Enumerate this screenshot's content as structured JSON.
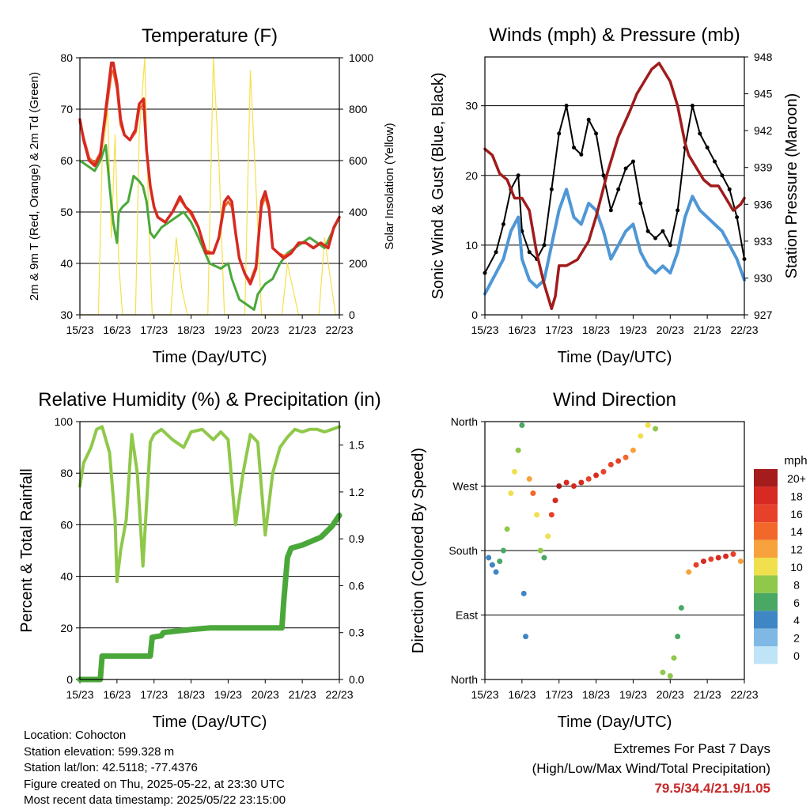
{
  "panels": {
    "temperature": {
      "title": "Temperature (F)",
      "xlabel": "Time (Day/UTC)",
      "ylabel_left": "2m & 9m T (Red, Orange) & 2m Td (Green)",
      "ylabel_right": "Solar Insolation (Yellow)"
    },
    "winds": {
      "title": "Winds (mph) & Pressure (mb)",
      "xlabel": "Time (Day/UTC)",
      "ylabel_left": "Sonic Wind & Gust (Blue, Black)",
      "ylabel_right": "Station Pressure (Maroon)"
    },
    "humidity": {
      "title": "Relative Humidity (%) & Precipitation (in)",
      "xlabel": "Time (Day/UTC)",
      "ylabel_left": "Percent & Total Rainfall"
    },
    "direction": {
      "title": "Wind Direction",
      "xlabel": "Time (Day/UTC)",
      "ylabel_left": "Direction (Colored By Speed)"
    }
  },
  "legend": {
    "unit": "mph",
    "labels": [
      "20+",
      "18",
      "16",
      "14",
      "12",
      "10",
      "8",
      "6",
      "4",
      "2",
      "0"
    ],
    "colors": [
      "#a51c1c",
      "#d62a22",
      "#e8412b",
      "#f2682b",
      "#f7a23c",
      "#f0e04e",
      "#8fc84a",
      "#4aa865",
      "#3f86c4",
      "#7fb8e4",
      "#bfe3f7"
    ]
  },
  "footer": {
    "location": "Location: Cohocton",
    "elevation": "Station elevation: 599.328 m",
    "latlon": "Station lat/lon: 42.5118; -77.4376",
    "created": "Figure created on Thu, 2025-05-22, at 23:30 UTC",
    "timestamp": "Most recent data timestamp: 2025/05/22 23:15:00",
    "extremes_title": "Extremes For Past 7 Days",
    "extremes_subtitle": "(High/Low/Max Wind/Total Precipitation)",
    "extremes_values": "79.5/34.4/21.9/1.05"
  },
  "colors": {
    "temp_2m": "#d62a22",
    "temp_9m": "#f2682b",
    "dewpoint": "#4aa83a",
    "solar": "#f5e04a",
    "wind": "#4f97d6",
    "gust": "#000000",
    "pressure": "#a01c1c",
    "rh": "#8fc84a",
    "precip": "#4aa83a"
  },
  "chart_data": [
    {
      "type": "line",
      "title": "Temperature (F)",
      "xlabel": "Time (Day/UTC)",
      "ylabel": "2m & 9m T (Red, Orange) & 2m Td (Green)",
      "y2label": "Solar Insolation (Yellow)",
      "x_ticks": [
        "15/23",
        "16/23",
        "17/23",
        "18/23",
        "19/23",
        "20/23",
        "21/23",
        "22/23"
      ],
      "xlim": [
        0,
        7
      ],
      "ylim": [
        30,
        80
      ],
      "y_ticks": [
        30,
        40,
        50,
        60,
        70,
        80
      ],
      "y2lim": [
        0,
        1000
      ],
      "y2_ticks": [
        0,
        200,
        400,
        600,
        800,
        1000
      ],
      "grid": "horizontal",
      "series": [
        {
          "axis": "left",
          "color_key": "temp_2m",
          "x": [
            0,
            0.1,
            0.25,
            0.4,
            0.55,
            0.7,
            0.85,
            0.9,
            1.0,
            1.1,
            1.2,
            1.35,
            1.5,
            1.6,
            1.72,
            1.8,
            1.9,
            2.0,
            2.1,
            2.3,
            2.5,
            2.7,
            2.85,
            3.0,
            3.2,
            3.4,
            3.6,
            3.75,
            3.9,
            4.0,
            4.1,
            4.2,
            4.3,
            4.45,
            4.6,
            4.75,
            4.9,
            5.0,
            5.1,
            5.2,
            5.35,
            5.5,
            5.7,
            5.9,
            6.1,
            6.3,
            6.5,
            6.7,
            6.85,
            7.0
          ],
          "y": [
            68,
            64,
            60,
            59,
            61,
            70,
            79,
            79,
            75,
            68,
            65,
            64,
            66,
            71,
            72,
            62,
            55,
            51,
            49,
            48,
            50,
            53,
            51,
            50,
            47,
            42,
            42,
            45,
            52,
            53,
            52,
            46,
            41,
            38,
            36,
            39,
            52,
            54,
            51,
            43,
            42,
            41,
            42,
            44,
            44,
            43,
            44,
            43,
            47,
            49
          ]
        },
        {
          "axis": "left",
          "color_key": "temp_9m",
          "x": [
            0,
            0.1,
            0.25,
            0.4,
            0.55,
            0.7,
            0.85,
            0.9,
            1.0,
            1.1,
            1.2,
            1.35,
            1.5,
            1.6,
            1.72,
            1.8,
            1.9,
            2.0,
            2.1,
            2.3,
            2.5,
            2.7,
            2.85,
            3.0,
            3.2,
            3.4,
            3.6,
            3.75,
            3.9,
            4.0,
            4.1,
            4.2,
            4.3,
            4.45,
            4.6,
            4.75,
            4.9,
            5.0,
            5.1,
            5.2,
            5.35,
            5.5,
            5.7,
            5.9,
            6.1,
            6.3,
            6.5,
            6.7,
            6.85,
            7.0
          ],
          "y": [
            67.5,
            64.5,
            60.5,
            59.5,
            61.5,
            69,
            77,
            77.5,
            74,
            67,
            65,
            64,
            65.5,
            70,
            71,
            62,
            55,
            51,
            49,
            48,
            50,
            52.5,
            51,
            49.5,
            47,
            42.5,
            42,
            45,
            51,
            52,
            51,
            46,
            41,
            38,
            36.5,
            39.5,
            51,
            53,
            50.5,
            43,
            42,
            41.5,
            42,
            44,
            44,
            43,
            44,
            43,
            47,
            49
          ]
        },
        {
          "axis": "left",
          "color_key": "dewpoint",
          "x": [
            0,
            0.2,
            0.4,
            0.55,
            0.7,
            0.8,
            0.9,
            1.0,
            1.05,
            1.15,
            1.3,
            1.45,
            1.6,
            1.7,
            1.8,
            1.9,
            2.0,
            2.2,
            2.4,
            2.6,
            2.8,
            3.0,
            3.2,
            3.5,
            3.8,
            4.0,
            4.1,
            4.3,
            4.5,
            4.7,
            4.8,
            5.0,
            5.2,
            5.4,
            5.6,
            5.8,
            6.0,
            6.2,
            6.4,
            6.6,
            6.8,
            7.0
          ],
          "y": [
            60,
            59,
            58,
            60,
            63,
            55,
            48,
            44,
            50,
            51,
            52,
            57,
            56,
            55,
            52,
            46,
            45,
            47,
            48,
            49,
            50,
            48,
            45,
            40,
            39,
            40,
            37,
            33,
            32,
            31,
            34,
            36,
            37,
            40,
            42,
            43,
            44,
            45,
            44,
            43,
            46,
            49
          ]
        },
        {
          "axis": "right",
          "color_key": "solar",
          "x": [
            0,
            0.5,
            0.6,
            0.75,
            0.85,
            0.95,
            1.05,
            1.15,
            1.3,
            1.5,
            1.6,
            1.75,
            1.85,
            1.95,
            2.1,
            2.45,
            2.6,
            2.75,
            2.9,
            3.45,
            3.6,
            3.75,
            3.9,
            4.45,
            4.6,
            4.75,
            4.9,
            5.45,
            5.6,
            5.75,
            5.9,
            6.45,
            6.6,
            6.75,
            6.9,
            7.0
          ],
          "y": [
            0,
            0,
            600,
            800,
            300,
            700,
            200,
            0,
            0,
            0,
            700,
            1000,
            400,
            0,
            0,
            0,
            300,
            100,
            0,
            0,
            1000,
            600,
            0,
            0,
            950,
            500,
            0,
            0,
            200,
            100,
            0,
            0,
            300,
            150,
            0,
            0
          ]
        }
      ]
    },
    {
      "type": "line",
      "title": "Winds (mph) & Pressure (mb)",
      "xlabel": "Time (Day/UTC)",
      "ylabel": "Sonic Wind & Gust (Blue, Black)",
      "y2label": "Station Pressure (Maroon)",
      "x_ticks": [
        "15/23",
        "16/23",
        "17/23",
        "18/23",
        "19/23",
        "20/23",
        "21/23",
        "22/23"
      ],
      "xlim": [
        0,
        7
      ],
      "ylim": [
        0,
        37
      ],
      "y_ticks": [
        0,
        10,
        20,
        30
      ],
      "y2lim": [
        927,
        948
      ],
      "y2_ticks": [
        927,
        930,
        933,
        936,
        939,
        942,
        945,
        948
      ],
      "grid": "horizontal",
      "series": [
        {
          "axis": "right",
          "color_key": "pressure",
          "x": [
            0,
            0.2,
            0.4,
            0.6,
            0.8,
            1.0,
            1.2,
            1.4,
            1.6,
            1.8,
            1.9,
            2.0,
            2.2,
            2.5,
            2.8,
            3.0,
            3.3,
            3.6,
            3.9,
            4.1,
            4.3,
            4.5,
            4.7,
            4.8,
            4.9,
            5.0,
            5.2,
            5.4,
            5.5,
            5.7,
            5.9,
            6.1,
            6.3,
            6.5,
            6.7,
            6.9,
            7.0
          ],
          "y": [
            940.5,
            940,
            938.5,
            938,
            936.5,
            936.5,
            935.5,
            932,
            929.5,
            927.5,
            928.5,
            931,
            931,
            931.5,
            933,
            935,
            938.5,
            941.5,
            943.5,
            945,
            946,
            947,
            947.5,
            947,
            946.5,
            946,
            944,
            941,
            940,
            939,
            938,
            937.5,
            937.5,
            936.5,
            935.5,
            936,
            936.5
          ]
        },
        {
          "axis": "left",
          "color_key": "wind",
          "x": [
            0,
            0.3,
            0.5,
            0.7,
            0.9,
            1.0,
            1.2,
            1.4,
            1.6,
            1.8,
            2.0,
            2.2,
            2.4,
            2.6,
            2.8,
            3.0,
            3.2,
            3.4,
            3.6,
            3.8,
            4.0,
            4.2,
            4.4,
            4.6,
            4.8,
            5.0,
            5.2,
            5.4,
            5.6,
            5.8,
            6.0,
            6.2,
            6.4,
            6.6,
            6.8,
            7.0
          ],
          "y": [
            3,
            6,
            8,
            12,
            14,
            8,
            5,
            4,
            5,
            10,
            15,
            18,
            14,
            13,
            16,
            15,
            12,
            8,
            10,
            12,
            13,
            9,
            7,
            6,
            7,
            6,
            9,
            14,
            17,
            15,
            14,
            13,
            12,
            10,
            8,
            5
          ]
        },
        {
          "axis": "left",
          "color_key": "gust",
          "x": [
            0,
            0.3,
            0.5,
            0.7,
            0.9,
            1.0,
            1.2,
            1.4,
            1.6,
            1.8,
            2.0,
            2.2,
            2.4,
            2.6,
            2.8,
            3.0,
            3.2,
            3.4,
            3.6,
            3.8,
            4.0,
            4.2,
            4.4,
            4.6,
            4.8,
            5.0,
            5.2,
            5.4,
            5.6,
            5.8,
            6.0,
            6.2,
            6.4,
            6.6,
            6.8,
            7.0
          ],
          "y": [
            6,
            9,
            13,
            18,
            20,
            12,
            9,
            8,
            10,
            18,
            26,
            30,
            24,
            23,
            28,
            26,
            20,
            15,
            18,
            21,
            22,
            16,
            12,
            11,
            12,
            10,
            15,
            24,
            30,
            26,
            24,
            22,
            20,
            18,
            14,
            8
          ]
        }
      ]
    },
    {
      "type": "line",
      "title": "Relative Humidity (%) & Precipitation (in)",
      "xlabel": "Time (Day/UTC)",
      "ylabel": "Percent & Total Rainfall",
      "x_ticks": [
        "15/23",
        "16/23",
        "17/23",
        "18/23",
        "19/23",
        "20/23",
        "21/23",
        "22/23"
      ],
      "xlim": [
        0,
        7
      ],
      "ylim": [
        0,
        100
      ],
      "y_ticks": [
        0,
        20,
        40,
        60,
        80,
        100
      ],
      "y2lim": [
        0,
        1.65
      ],
      "y2_ticks": [
        0.0,
        0.3,
        0.6,
        0.9,
        1.2,
        1.5
      ],
      "grid": "horizontal",
      "series": [
        {
          "axis": "left",
          "color_key": "rh",
          "x": [
            0,
            0.1,
            0.3,
            0.45,
            0.6,
            0.8,
            0.95,
            1.0,
            1.1,
            1.25,
            1.4,
            1.55,
            1.7,
            1.8,
            1.9,
            2.0,
            2.2,
            2.5,
            2.8,
            3.0,
            3.3,
            3.6,
            3.8,
            4.0,
            4.2,
            4.4,
            4.6,
            4.8,
            5.0,
            5.2,
            5.4,
            5.6,
            5.8,
            6.0,
            6.2,
            6.4,
            6.6,
            6.8,
            7.0
          ],
          "y": [
            75,
            84,
            90,
            97,
            98,
            88,
            62,
            38,
            50,
            62,
            95,
            80,
            44,
            68,
            92,
            95,
            97,
            93,
            90,
            96,
            97,
            93,
            96,
            93,
            60,
            80,
            95,
            92,
            56,
            80,
            90,
            94,
            97,
            96,
            97,
            97,
            96,
            97,
            98
          ]
        },
        {
          "axis": "right",
          "color_key": "precip",
          "x": [
            0,
            0.55,
            0.6,
            1.9,
            1.95,
            2.2,
            2.25,
            3.0,
            3.5,
            5.45,
            5.5,
            5.6,
            5.7,
            6.0,
            6.5,
            6.8,
            7.0
          ],
          "y": [
            0,
            0,
            0.15,
            0.15,
            0.27,
            0.28,
            0.3,
            0.32,
            0.33,
            0.33,
            0.5,
            0.78,
            0.84,
            0.86,
            0.91,
            0.98,
            1.05
          ]
        }
      ]
    },
    {
      "type": "scatter",
      "title": "Wind Direction",
      "xlabel": "Time (Day/UTC)",
      "ylabel": "Direction (Colored By Speed)",
      "x_ticks": [
        "15/23",
        "16/23",
        "17/23",
        "18/23",
        "19/23",
        "20/23",
        "21/23",
        "22/23"
      ],
      "xlim": [
        0,
        7
      ],
      "ylim": [
        0,
        360
      ],
      "y_ticks": [
        "North",
        "East",
        "South",
        "West",
        "North"
      ],
      "y_tick_values": [
        0,
        90,
        180,
        270,
        360
      ],
      "grid": "horizontal",
      "legend": "right",
      "points": {
        "x": [
          0.1,
          0.2,
          0.3,
          0.4,
          0.5,
          0.6,
          0.7,
          0.8,
          0.9,
          1.0,
          1.05,
          1.1,
          1.2,
          1.3,
          1.4,
          1.5,
          1.6,
          1.7,
          1.8,
          1.9,
          2.0,
          2.2,
          2.4,
          2.6,
          2.8,
          3.0,
          3.2,
          3.4,
          3.6,
          3.8,
          4.0,
          4.2,
          4.4,
          4.6,
          4.8,
          5.0,
          5.1,
          5.2,
          5.3,
          5.5,
          5.7,
          5.9,
          6.1,
          6.3,
          6.5,
          6.7,
          6.9
        ],
        "y": [
          170,
          160,
          150,
          165,
          180,
          210,
          260,
          290,
          320,
          355,
          120,
          60,
          280,
          260,
          230,
          180,
          170,
          200,
          230,
          250,
          270,
          275,
          270,
          275,
          280,
          285,
          290,
          300,
          305,
          310,
          320,
          340,
          355,
          350,
          10,
          5,
          30,
          60,
          100,
          150,
          160,
          165,
          168,
          170,
          172,
          175,
          165
        ],
        "speed": [
          3,
          4,
          3,
          5,
          6,
          8,
          10,
          9,
          7,
          5,
          4,
          4,
          12,
          14,
          10,
          7,
          6,
          9,
          16,
          18,
          19,
          17,
          18,
          18,
          16,
          17,
          16,
          15,
          16,
          14,
          12,
          10,
          9,
          8,
          7,
          8,
          7,
          6,
          5,
          12,
          15,
          17,
          16,
          18,
          17,
          16,
          12
        ]
      }
    }
  ]
}
